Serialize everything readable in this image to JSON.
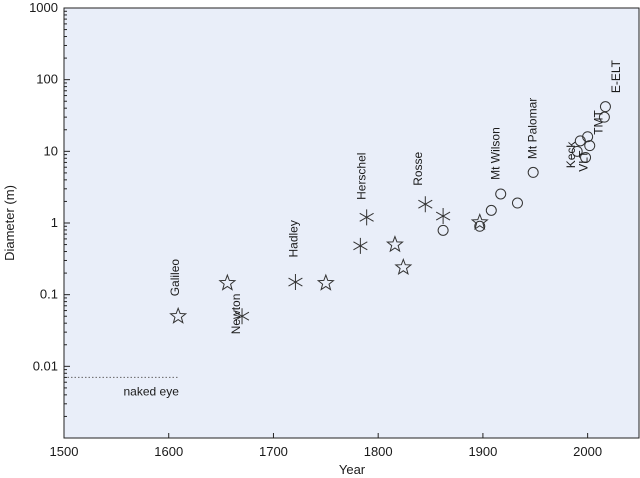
{
  "chart_data": {
    "type": "scatter",
    "title": "",
    "xlabel": "Year",
    "ylabel": "Diameter (m)",
    "xlim": [
      1500,
      2050
    ],
    "ylim": [
      0.001,
      1000
    ],
    "y_scale": "log",
    "grid": false,
    "x_ticks": [
      1500,
      1600,
      1700,
      1800,
      1900,
      2000
    ],
    "x_tick_labels": [
      "1500",
      "1600",
      "1700",
      "1800",
      "1900",
      "2000"
    ],
    "y_ticks": [
      0.01,
      0.1,
      1,
      10,
      100,
      1000
    ],
    "y_tick_labels": [
      "0.01",
      "0.1",
      "1",
      "10",
      "100",
      "1000"
    ],
    "colors": {
      "plot_background": "#e9eef9",
      "marker": "#333333",
      "highlight_label": "#2a8fb0",
      "naked_eye_line": "#666666"
    },
    "series": [
      {
        "marker": "star",
        "points": [
          {
            "x": 1609,
            "y": 0.05
          },
          {
            "x": 1656,
            "y": 0.145
          },
          {
            "x": 1750,
            "y": 0.145
          },
          {
            "x": 1816,
            "y": 0.5
          },
          {
            "x": 1824,
            "y": 0.24
          },
          {
            "x": 1897,
            "y": 1.02
          }
        ]
      },
      {
        "marker": "asterisk",
        "points": [
          {
            "x": 1670,
            "y": 0.05
          },
          {
            "x": 1721,
            "y": 0.15
          },
          {
            "x": 1783,
            "y": 0.48
          },
          {
            "x": 1789,
            "y": 1.2
          },
          {
            "x": 1845,
            "y": 1.83
          },
          {
            "x": 1862,
            "y": 1.25
          }
        ]
      },
      {
        "marker": "circle",
        "points": [
          {
            "x": 1862,
            "y": 0.79
          },
          {
            "x": 1897,
            "y": 0.9
          },
          {
            "x": 1908,
            "y": 1.5
          },
          {
            "x": 1917,
            "y": 2.54
          },
          {
            "x": 1933,
            "y": 1.9
          },
          {
            "x": 1948,
            "y": 5.08
          },
          {
            "x": 1990,
            "y": 10
          },
          {
            "x": 1993,
            "y": 14
          },
          {
            "x": 1998,
            "y": 8.2
          },
          {
            "x": 2000,
            "y": 16
          },
          {
            "x": 2002,
            "y": 12
          },
          {
            "x": 2016,
            "y": 30
          },
          {
            "x": 2017,
            "y": 42
          }
        ]
      }
    ],
    "naked_eye": {
      "x_start": 1500,
      "x_end": 1610,
      "y": 0.007,
      "label": "naked eye"
    },
    "annotations": [
      {
        "text": "Galileo",
        "x": 1610,
        "y": 0.095,
        "rotation": -90
      },
      {
        "text": "Newton",
        "x": 1668,
        "y": 0.028,
        "rotation": -90
      },
      {
        "text": "Hadley",
        "x": 1723,
        "y": 0.33,
        "rotation": -90
      },
      {
        "text": "Herschel",
        "x": 1788,
        "y": 2.1,
        "rotation": -90
      },
      {
        "text": "Rosse",
        "x": 1842,
        "y": 3.3,
        "rotation": -90
      },
      {
        "text": "Mt Wilson",
        "x": 1916,
        "y": 4.0,
        "rotation": -90
      },
      {
        "text": "Mt Palomar",
        "x": 1951,
        "y": 7.8,
        "rotation": -90
      },
      {
        "text": "Keck",
        "x": 1988,
        "y": 5.8,
        "rotation": -90
      },
      {
        "text": "VLT",
        "x": 2000,
        "y": 5.2,
        "rotation": -90
      },
      {
        "text": "TMT",
        "x": 2014,
        "y": 17,
        "rotation": -90
      },
      {
        "text": "E-ELT",
        "x": 2031,
        "y": 65,
        "rotation": -90,
        "highlight": true
      }
    ]
  }
}
